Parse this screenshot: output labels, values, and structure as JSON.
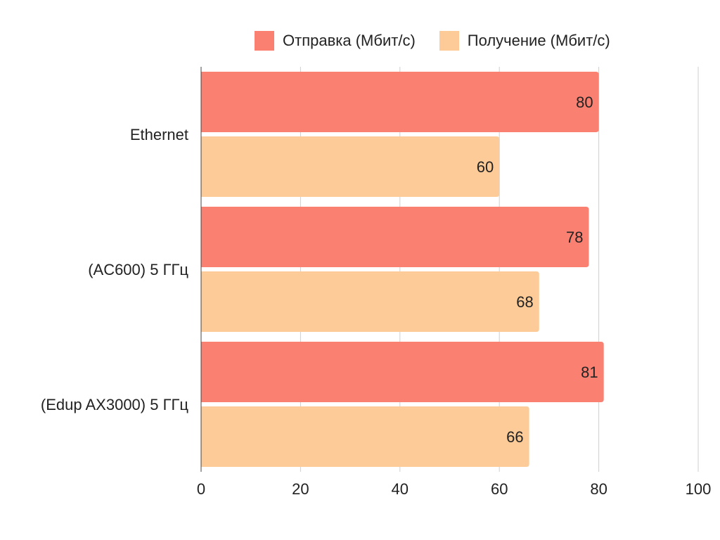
{
  "chart_data": {
    "type": "bar",
    "orientation": "horizontal",
    "title": "",
    "xlabel": "",
    "ylabel": "",
    "categories": [
      "Ethernet",
      "(AC600) 5 ГГц",
      "(Edup AX3000) 5 ГГц"
    ],
    "series": [
      {
        "name": "Отправка (Мбит/с)",
        "color": "#fa8072",
        "values": [
          80,
          78,
          81
        ]
      },
      {
        "name": "Получение (Мбит/с)",
        "color": "#fdcb97",
        "values": [
          60,
          68,
          66
        ]
      }
    ],
    "xlim": [
      0,
      100
    ],
    "xticks": [
      0,
      20,
      40,
      60,
      80,
      100
    ],
    "grid": true,
    "legend_position": "top",
    "data_labels": true
  }
}
